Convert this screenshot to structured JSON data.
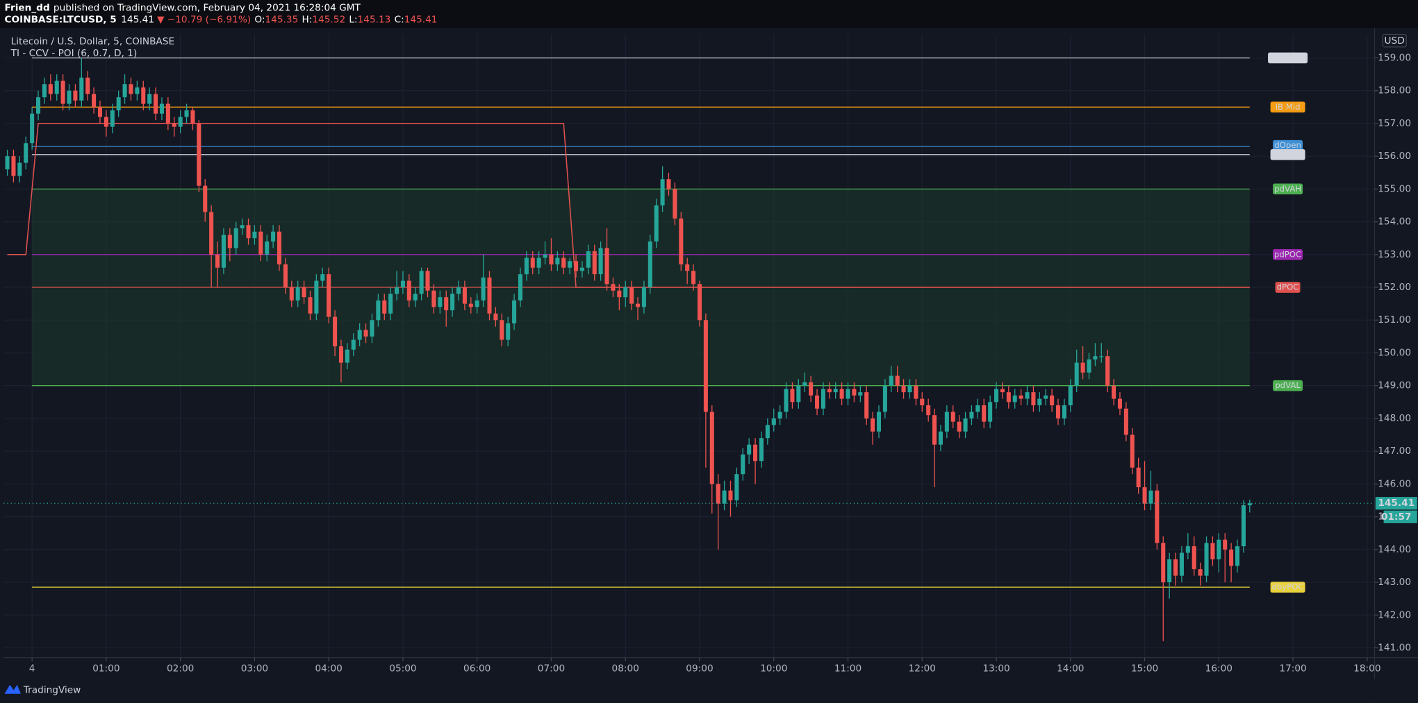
{
  "header": {
    "author": "Frien_dd",
    "published": "published on TradingView.com, February 04, 2021 16:28:04 GMT",
    "symbol": "COINBASE:LTCUSD, 5",
    "change": "▼ −10.79 (−6.91%)",
    "o_label": "O:",
    "h_label": "H:",
    "l_label": "L:",
    "c_label": "C:"
  },
  "footer": {
    "brand": "TradingView"
  },
  "chart_data": {
    "type": "candlestick",
    "title": "Litecoin / U.S. Dollar, 5, COINBASE",
    "subtitle": "TI - CCV - POI (6, 0.7, D, 1)",
    "currency": "USD",
    "countdown": "01:57",
    "up_color": "#26a69a",
    "down_color": "#ef5350",
    "grid": true,
    "xlim": [
      -23,
      1086
    ],
    "xticks": [
      {
        "value": 0,
        "label": "4"
      },
      {
        "value": 60,
        "label": "01:00"
      },
      {
        "value": 120,
        "label": "02:00"
      },
      {
        "value": 180,
        "label": "03:00"
      },
      {
        "value": 240,
        "label": "04:00"
      },
      {
        "value": 300,
        "label": "05:00"
      },
      {
        "value": 360,
        "label": "06:00"
      },
      {
        "value": 420,
        "label": "07:00"
      },
      {
        "value": 480,
        "label": "08:00"
      },
      {
        "value": 540,
        "label": "09:00"
      },
      {
        "value": 600,
        "label": "10:00"
      },
      {
        "value": 660,
        "label": "11:00"
      },
      {
        "value": 720,
        "label": "12:00"
      },
      {
        "value": 780,
        "label": "13:00"
      },
      {
        "value": 840,
        "label": "14:00"
      },
      {
        "value": 900,
        "label": "15:00"
      },
      {
        "value": 960,
        "label": "16:00"
      },
      {
        "value": 1020,
        "label": "17:00"
      },
      {
        "value": 1080,
        "label": "18:00"
      }
    ],
    "ylim": [
      140.7,
      159.72
    ],
    "yticks": [
      {
        "value": 141,
        "label": "141.00"
      },
      {
        "value": 142,
        "label": "142.00"
      },
      {
        "value": 143,
        "label": "143.00"
      },
      {
        "value": 144,
        "label": "144.00"
      },
      {
        "value": 145,
        "label": "145.00"
      },
      {
        "value": 146,
        "label": "146.00"
      },
      {
        "value": 147,
        "label": "147.00"
      },
      {
        "value": 148,
        "label": "148.00"
      },
      {
        "value": 149,
        "label": "149.00"
      },
      {
        "value": 150,
        "label": "150.00"
      },
      {
        "value": 151,
        "label": "151.00"
      },
      {
        "value": 152,
        "label": "152.00"
      },
      {
        "value": 153,
        "label": "153.00"
      },
      {
        "value": 154,
        "label": "154.00"
      },
      {
        "value": 155,
        "label": "155.00"
      },
      {
        "value": 156,
        "label": "156.00"
      },
      {
        "value": 157,
        "label": "157.00"
      },
      {
        "value": 158,
        "label": "158.00"
      },
      {
        "value": 159,
        "label": "159.00"
      }
    ],
    "x": [
      -20,
      -15,
      -10,
      -5,
      0,
      5,
      10,
      15,
      20,
      25,
      30,
      35,
      40,
      45,
      50,
      55,
      60,
      65,
      70,
      75,
      80,
      85,
      90,
      95,
      100,
      105,
      110,
      115,
      120,
      125,
      130,
      135,
      140,
      145,
      150,
      155,
      160,
      165,
      170,
      175,
      180,
      185,
      190,
      195,
      200,
      205,
      210,
      215,
      220,
      225,
      230,
      235,
      240,
      245,
      250,
      255,
      260,
      265,
      270,
      275,
      280,
      285,
      290,
      295,
      300,
      305,
      310,
      315,
      320,
      325,
      330,
      335,
      340,
      345,
      350,
      355,
      360,
      365,
      370,
      375,
      380,
      385,
      390,
      395,
      400,
      405,
      410,
      415,
      420,
      425,
      430,
      435,
      440,
      445,
      450,
      455,
      460,
      465,
      470,
      475,
      480,
      485,
      490,
      495,
      500,
      505,
      510,
      515,
      520,
      525,
      530,
      535,
      540,
      545,
      550,
      555,
      560,
      565,
      570,
      575,
      580,
      585,
      590,
      595,
      600,
      605,
      610,
      615,
      620,
      625,
      630,
      635,
      640,
      645,
      650,
      655,
      660,
      665,
      670,
      675,
      680,
      685,
      690,
      695,
      700,
      705,
      710,
      715,
      720,
      725,
      730,
      735,
      740,
      745,
      750,
      755,
      760,
      765,
      770,
      775,
      780,
      785,
      790,
      795,
      800,
      805,
      810,
      815,
      820,
      825,
      830,
      835,
      840,
      845,
      850,
      855,
      860,
      865,
      870,
      875,
      880,
      885,
      890,
      895,
      900,
      905,
      910,
      915,
      920,
      925,
      930,
      935,
      940,
      945,
      950,
      955,
      960,
      965,
      970,
      975,
      980,
      985
    ],
    "open": [
      155.6,
      156.0,
      155.4,
      155.8,
      156.4,
      157.3,
      157.8,
      158.2,
      157.9,
      158.3,
      157.6,
      158.0,
      157.7,
      158.4,
      157.9,
      157.5,
      157.2,
      156.9,
      157.4,
      157.8,
      158.2,
      157.9,
      158.1,
      157.6,
      157.9,
      157.3,
      157.6,
      157.0,
      156.9,
      157.2,
      157.4,
      157.0,
      155.1,
      154.3,
      153.0,
      152.6,
      153.6,
      153.2,
      153.8,
      153.9,
      153.5,
      153.7,
      153.0,
      153.4,
      153.7,
      152.7,
      152.0,
      151.6,
      152.0,
      151.7,
      151.2,
      152.2,
      152.4,
      151.1,
      150.2,
      149.7,
      150.1,
      150.4,
      150.7,
      150.5,
      151.0,
      151.6,
      151.2,
      151.8,
      152.0,
      152.2,
      151.6,
      151.8,
      152.5,
      151.9,
      151.4,
      151.7,
      151.3,
      151.8,
      152.0,
      151.5,
      151.4,
      151.6,
      152.3,
      151.2,
      151.0,
      150.4,
      150.9,
      151.6,
      152.4,
      152.9,
      152.6,
      152.9,
      153.0,
      152.7,
      152.9,
      152.6,
      152.8,
      152.5,
      152.6,
      153.1,
      152.4,
      153.2,
      152.1,
      151.9,
      151.7,
      152.0,
      151.5,
      151.4,
      152.0,
      153.4,
      154.5,
      155.3,
      155.0,
      154.1,
      152.7,
      152.5,
      152.1,
      151.0,
      148.2,
      146.0,
      145.4,
      145.8,
      145.5,
      146.3,
      146.9,
      147.2,
      146.7,
      147.4,
      147.8,
      148.0,
      148.2,
      148.9,
      148.5,
      149.0,
      149.1,
      148.7,
      148.3,
      148.9,
      148.8,
      148.9,
      148.6,
      148.9,
      148.7,
      148.8,
      148.0,
      147.6,
      148.2,
      149.0,
      149.3,
      149.0,
      148.8,
      149.0,
      148.6,
      148.4,
      148.1,
      147.2,
      147.6,
      148.2,
      147.9,
      147.6,
      148.0,
      148.2,
      148.4,
      147.9,
      148.5,
      148.9,
      148.8,
      148.5,
      148.7,
      148.6,
      148.8,
      148.4,
      148.6,
      148.7,
      148.4,
      148.0,
      148.4,
      149.0,
      149.7,
      149.4,
      149.8,
      149.9,
      149.9,
      149.0,
      148.6,
      148.3,
      147.5,
      146.5,
      145.9,
      145.4,
      145.8,
      144.2,
      143.0,
      143.7,
      143.2,
      143.9,
      144.1,
      143.4,
      143.2,
      144.2,
      143.7,
      144.3,
      144.0,
      143.5,
      144.1,
      145.35
    ],
    "high": [
      156.2,
      156.2,
      156.0,
      156.6,
      157.5,
      158.0,
      158.4,
      158.5,
      158.5,
      158.5,
      158.2,
      158.2,
      159.0,
      158.6,
      158.1,
      157.7,
      157.4,
      157.6,
      158.0,
      158.5,
      158.4,
      158.3,
      158.3,
      158.1,
      158.1,
      157.8,
      157.8,
      157.2,
      157.4,
      157.6,
      157.5,
      157.1,
      155.3,
      154.5,
      153.4,
      153.8,
      153.8,
      154.0,
      154.1,
      154.1,
      153.9,
      153.9,
      153.6,
      153.9,
      153.9,
      152.9,
      152.2,
      152.2,
      152.2,
      151.9,
      152.4,
      152.6,
      152.6,
      151.3,
      150.4,
      150.3,
      150.6,
      150.9,
      150.9,
      151.2,
      151.8,
      151.8,
      152.0,
      152.5,
      152.5,
      152.4,
      152.0,
      152.6,
      152.6,
      152.1,
      151.9,
      151.9,
      152.0,
      152.2,
      152.2,
      151.7,
      151.8,
      153.0,
      152.5,
      151.4,
      151.2,
      151.1,
      151.8,
      152.6,
      153.1,
      153.1,
      153.1,
      153.4,
      153.5,
      153.1,
      153.1,
      152.9,
      153.0,
      152.8,
      153.3,
      153.3,
      153.4,
      153.8,
      152.3,
      152.1,
      152.2,
      152.2,
      151.7,
      152.2,
      153.6,
      154.7,
      155.7,
      155.5,
      155.2,
      154.3,
      152.9,
      152.7,
      152.2,
      151.2,
      148.4,
      146.3,
      146.1,
      146.1,
      146.5,
      147.1,
      147.4,
      147.4,
      147.6,
      148.0,
      148.3,
      148.4,
      149.1,
      149.1,
      149.2,
      149.4,
      149.3,
      148.9,
      149.1,
      149.1,
      149.1,
      149.1,
      149.1,
      149.1,
      149.0,
      149.0,
      148.2,
      148.4,
      149.2,
      149.6,
      149.6,
      149.2,
      149.2,
      149.2,
      148.8,
      148.6,
      148.3,
      147.8,
      148.4,
      148.4,
      148.1,
      148.2,
      148.4,
      148.6,
      148.6,
      148.7,
      149.1,
      149.1,
      149.0,
      148.9,
      148.9,
      149.0,
      149.0,
      148.8,
      148.9,
      148.9,
      148.6,
      148.6,
      149.2,
      150.1,
      150.2,
      150.0,
      150.3,
      150.3,
      150.1,
      149.2,
      148.8,
      148.5,
      147.7,
      146.8,
      146.7,
      146.4,
      146.0,
      144.4,
      143.9,
      143.9,
      144.1,
      144.5,
      144.4,
      143.6,
      144.4,
      144.4,
      144.5,
      144.5,
      144.2,
      144.3,
      145.5,
      145.52
    ],
    "low": [
      155.4,
      155.2,
      155.2,
      155.6,
      156.2,
      157.1,
      157.6,
      157.7,
      157.7,
      157.4,
      157.4,
      157.5,
      157.5,
      157.7,
      157.3,
      157.0,
      156.6,
      156.7,
      157.2,
      157.6,
      157.7,
      157.7,
      157.4,
      157.4,
      157.1,
      157.1,
      156.8,
      156.6,
      156.7,
      157.0,
      156.8,
      154.9,
      154.0,
      152.0,
      152.0,
      152.4,
      152.8,
      153.0,
      153.6,
      153.3,
      153.3,
      152.8,
      152.8,
      153.2,
      152.5,
      151.8,
      151.4,
      151.4,
      151.5,
      151.0,
      151.0,
      152.0,
      150.9,
      149.9,
      149.1,
      149.5,
      149.9,
      150.2,
      150.3,
      150.3,
      150.8,
      151.0,
      151.0,
      151.6,
      151.8,
      151.4,
      151.4,
      151.6,
      151.7,
      151.2,
      151.2,
      150.8,
      151.1,
      151.6,
      151.3,
      151.2,
      151.2,
      151.4,
      151.0,
      150.8,
      150.2,
      150.2,
      150.7,
      151.4,
      152.2,
      152.4,
      152.4,
      152.7,
      152.5,
      152.5,
      152.4,
      152.4,
      152.3,
      152.3,
      152.4,
      152.2,
      152.2,
      151.9,
      151.7,
      151.3,
      151.4,
      151.3,
      151.0,
      151.2,
      151.8,
      153.2,
      154.3,
      154.8,
      153.9,
      152.5,
      152.1,
      151.9,
      150.8,
      146.5,
      145.1,
      144.0,
      145.2,
      145.0,
      145.3,
      146.1,
      146.6,
      146.0,
      146.5,
      147.2,
      147.6,
      147.8,
      148.0,
      148.3,
      148.3,
      148.8,
      148.5,
      148.1,
      148.1,
      148.6,
      148.6,
      148.4,
      148.4,
      148.5,
      148.5,
      147.8,
      147.2,
      147.4,
      148.0,
      148.8,
      148.8,
      148.6,
      148.6,
      148.4,
      148.2,
      147.9,
      145.9,
      147.0,
      147.4,
      147.7,
      147.4,
      147.4,
      147.8,
      148.0,
      147.7,
      147.7,
      148.3,
      148.6,
      148.3,
      148.3,
      148.4,
      148.4,
      148.2,
      148.2,
      148.4,
      148.2,
      147.8,
      147.8,
      148.2,
      148.8,
      149.2,
      149.2,
      149.6,
      149.7,
      148.8,
      148.4,
      148.1,
      147.3,
      146.3,
      145.7,
      145.2,
      145.2,
      144.0,
      141.2,
      142.5,
      142.9,
      143.0,
      143.7,
      143.2,
      142.9,
      143.0,
      143.5,
      143.3,
      143.0,
      143.0,
      143.3,
      143.9,
      145.13
    ],
    "close": [
      156.0,
      155.4,
      155.8,
      156.4,
      157.3,
      157.8,
      158.2,
      157.9,
      158.3,
      157.6,
      158.0,
      157.7,
      158.4,
      157.9,
      157.5,
      157.2,
      156.9,
      157.4,
      157.8,
      158.2,
      157.9,
      158.1,
      157.6,
      157.9,
      157.3,
      157.6,
      157.0,
      156.9,
      157.2,
      157.4,
      157.0,
      155.1,
      154.3,
      153.0,
      152.6,
      153.6,
      153.2,
      153.8,
      153.9,
      153.5,
      153.7,
      153.0,
      153.4,
      153.7,
      152.7,
      152.0,
      151.6,
      152.0,
      151.7,
      151.2,
      152.2,
      152.4,
      151.1,
      150.2,
      149.7,
      150.1,
      150.4,
      150.7,
      150.5,
      151.0,
      151.6,
      151.2,
      151.8,
      152.0,
      152.2,
      151.6,
      151.8,
      152.5,
      151.9,
      151.4,
      151.7,
      151.3,
      151.8,
      152.0,
      151.5,
      151.4,
      151.6,
      152.3,
      151.2,
      151.0,
      150.4,
      150.9,
      151.6,
      152.4,
      152.9,
      152.6,
      152.9,
      153.0,
      152.7,
      152.9,
      152.6,
      152.8,
      152.5,
      152.6,
      153.1,
      152.4,
      153.2,
      152.1,
      151.9,
      151.7,
      152.0,
      151.5,
      151.4,
      152.0,
      153.4,
      154.5,
      155.3,
      155.0,
      154.1,
      152.7,
      152.5,
      152.1,
      151.0,
      148.2,
      146.0,
      145.4,
      145.8,
      145.5,
      146.3,
      146.9,
      147.2,
      146.7,
      147.4,
      147.8,
      148.0,
      148.2,
      148.9,
      148.5,
      149.0,
      149.1,
      148.7,
      148.3,
      148.9,
      148.8,
      148.9,
      148.6,
      148.9,
      148.7,
      148.8,
      148.0,
      147.6,
      148.2,
      149.0,
      149.3,
      149.0,
      148.8,
      149.0,
      148.6,
      148.4,
      148.1,
      147.2,
      147.6,
      148.2,
      147.9,
      147.6,
      148.0,
      148.2,
      148.4,
      147.9,
      148.5,
      148.9,
      148.8,
      148.5,
      148.7,
      148.6,
      148.8,
      148.4,
      148.6,
      148.7,
      148.4,
      148.0,
      148.4,
      149.0,
      149.7,
      149.4,
      149.8,
      149.9,
      149.9,
      149.0,
      148.6,
      148.3,
      147.5,
      146.5,
      145.9,
      145.4,
      145.8,
      144.2,
      143.0,
      143.7,
      143.2,
      143.9,
      144.1,
      143.4,
      143.2,
      144.2,
      143.7,
      144.3,
      144.0,
      143.5,
      144.1,
      145.35,
      145.41
    ],
    "value_area": {
      "from": 155.0,
      "to": 149.0,
      "color": "#1e3a2c"
    },
    "poc_line": {
      "color": "#e0524f",
      "x": [
        -20,
        -5,
        5,
        430,
        440,
        985
      ],
      "values": [
        153.0,
        153.0,
        157.0,
        157.0,
        152.0,
        152.0
      ]
    },
    "levels": [
      {
        "name": "IB High",
        "value": 159.0,
        "color": "#d1d4dc",
        "text_color": "#5d606b"
      },
      {
        "name": "IB Mid",
        "value": 157.5,
        "color": "#f39c12",
        "text_color": "#a0620a"
      },
      {
        "name": "dOpen",
        "value": 156.3,
        "color": "#3d8fd6",
        "text_color": "#ffffff"
      },
      {
        "name": "IB Low",
        "value": 156.05,
        "color": "#d1d4dc",
        "text_color": "#5d606b"
      },
      {
        "name": "pdVAH",
        "value": 155.0,
        "color": "#4caf50",
        "text_color": "#ffffff"
      },
      {
        "name": "pdPOC",
        "value": 153.0,
        "color": "#9c27b0",
        "text_color": "#ffffff"
      },
      {
        "name": "dPOC",
        "value": 152.0,
        "color": "#e0524f",
        "text_color": "#ffffff"
      },
      {
        "name": "pdVAL",
        "value": 149.0,
        "color": "#4caf50",
        "text_color": "#ffffff"
      },
      {
        "name": "dbyPOC",
        "value": 142.85,
        "color": "#e8d13a",
        "text_color": "#6b5d0a"
      }
    ]
  }
}
